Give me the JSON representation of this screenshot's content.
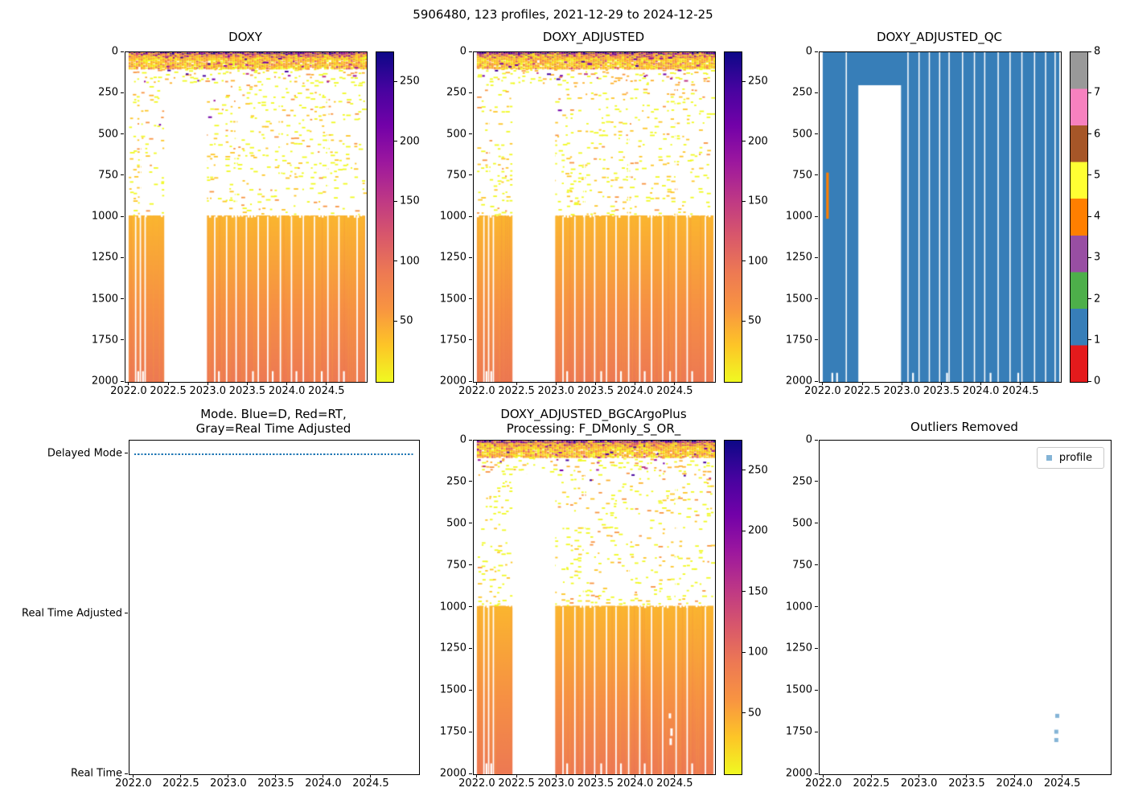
{
  "figure": {
    "title": "5906480, 123 profiles, 2021-12-29 to 2024-12-25"
  },
  "palette": {
    "plasma_stops": [
      "#f0f921",
      "#fdc527",
      "#f89441",
      "#ed7953",
      "#d8576b",
      "#bd3786",
      "#9c179e",
      "#7201a8",
      "#46039f",
      "#0d0887"
    ],
    "qc_colors": [
      "#e41a1c",
      "#377eb8",
      "#4daf4a",
      "#984ea3",
      "#ff7f00",
      "#ffff33",
      "#a65628",
      "#f781bf",
      "#999999"
    ],
    "line_blue": "#1f77b4",
    "scatter_blue_rgba": "rgba(31,119,180,0.55)"
  },
  "chart_data": [
    {
      "id": "doxy",
      "type": "heatmap",
      "title": "DOXY",
      "xlim": [
        2021.95,
        2025.0
      ],
      "xticks": [
        "2022.0",
        "2022.5",
        "2023.0",
        "2023.5",
        "2024.0",
        "2024.5"
      ],
      "yticks": [
        "0",
        "250",
        "500",
        "750",
        "1000",
        "1250",
        "1500",
        "1750",
        "2000"
      ],
      "ylim": [
        2000,
        0
      ],
      "colorbar": {
        "ticks": [
          "50",
          "100",
          "150",
          "200",
          "250"
        ],
        "vmin": 0,
        "vmax": 275
      },
      "data_x": [
        2021.99,
        2024.98
      ],
      "gap": {
        "x0": 2022.44,
        "x1": 2022.98,
        "depth_top": 200
      },
      "deep_top_depth": 990,
      "deep_value_range": [
        40,
        92
      ],
      "missing_lines": [
        2022.07,
        2022.13,
        2022.19,
        2023.07,
        2023.22,
        2023.34,
        2023.47,
        2023.62,
        2023.74,
        2023.9,
        2024.04,
        2024.19,
        2024.33,
        2024.5,
        2024.64,
        2024.87
      ],
      "bottom_notches": [
        2022.1,
        2022.16,
        2023.12,
        2023.55,
        2023.8,
        2024.1,
        2024.42,
        2024.7
      ],
      "seed": 7
    },
    {
      "id": "doxy_adjusted",
      "type": "heatmap",
      "title": "DOXY_ADJUSTED",
      "xlim": [
        2021.95,
        2025.0
      ],
      "xticks": [
        "2022.0",
        "2022.5",
        "2023.0",
        "2023.5",
        "2024.0",
        "2024.5"
      ],
      "yticks": [
        "0",
        "250",
        "500",
        "750",
        "1000",
        "1250",
        "1500",
        "1750",
        "2000"
      ],
      "ylim": [
        2000,
        0
      ],
      "colorbar": {
        "ticks": [
          "50",
          "100",
          "150",
          "200",
          "250"
        ],
        "vmin": 0,
        "vmax": 275
      },
      "data_x": [
        2021.99,
        2024.98
      ],
      "gap": {
        "x0": 2022.44,
        "x1": 2022.98,
        "depth_top": 200
      },
      "deep_top_depth": 990,
      "deep_value_range": [
        40,
        92
      ],
      "missing_lines": [
        2022.07,
        2022.13,
        2022.19,
        2023.07,
        2023.22,
        2023.34,
        2023.47,
        2023.62,
        2023.74,
        2023.9,
        2024.04,
        2024.19,
        2024.33,
        2024.5,
        2024.64,
        2024.87
      ],
      "bottom_notches": [
        2022.1,
        2022.16,
        2023.12,
        2023.55,
        2023.8,
        2024.1,
        2024.42,
        2024.7
      ],
      "seed": 11
    },
    {
      "id": "doxy_adjusted_qc",
      "type": "qc",
      "title": "DOXY_ADJUSTED_QC",
      "xlim": [
        2021.95,
        2025.0
      ],
      "xticks": [
        "2022.0",
        "2022.5",
        "2023.0",
        "2023.5",
        "2024.0",
        "2024.5"
      ],
      "yticks": [
        "0",
        "250",
        "500",
        "750",
        "1000",
        "1250",
        "1500",
        "1750",
        "2000"
      ],
      "ylim": [
        2000,
        0
      ],
      "colorbar": {
        "ticks": [
          "0",
          "1",
          "2",
          "3",
          "4",
          "5",
          "6",
          "7",
          "8"
        ]
      },
      "data_x": [
        2021.99,
        2024.98
      ],
      "fill_qc": 1,
      "gap": {
        "x0": 2022.44,
        "x1": 2022.98,
        "depth_top": 200
      },
      "orange_mark": {
        "x": 2022.05,
        "depth0": 730,
        "depth1": 1010,
        "qc": 4
      },
      "white_lines_full": [
        2022.28,
        2023.06,
        2023.2,
        2023.33,
        2023.46,
        2023.58,
        2023.75,
        2023.9,
        2024.03,
        2024.2,
        2024.35,
        2024.5,
        2024.66,
        2024.8,
        2024.92
      ],
      "bottom_notches": [
        2022.1,
        2022.16,
        2023.12,
        2023.55,
        2024.1,
        2024.45
      ]
    },
    {
      "id": "mode",
      "type": "mode",
      "title_lines": [
        "Mode. Blue=D, Red=RT,",
        "Gray=Real Time Adjusted"
      ],
      "xlim": [
        2021.95,
        2025.0
      ],
      "xticks": [
        "2022.0",
        "2022.5",
        "2023.0",
        "2023.5",
        "2024.0",
        "2024.5"
      ],
      "ycats": [
        "Delayed Mode",
        "Real Time Adjusted",
        "Real Time"
      ],
      "line": {
        "y_cat": "Delayed Mode",
        "x0": 2022.0,
        "x1": 2024.95,
        "style": "dotted",
        "color": "#1f77b4"
      }
    },
    {
      "id": "doxy_adjusted_bgc",
      "type": "heatmap",
      "title_lines": [
        "DOXY_ADJUSTED_BGCArgoPlus",
        "Processing: F_DMonly_S_OR_"
      ],
      "xlim": [
        2021.95,
        2025.0
      ],
      "xticks": [
        "2022.0",
        "2022.5",
        "2023.0",
        "2023.5",
        "2024.0",
        "2024.5"
      ],
      "yticks": [
        "0",
        "250",
        "500",
        "750",
        "1000",
        "1250",
        "1500",
        "1750",
        "2000"
      ],
      "ylim": [
        2000,
        0
      ],
      "colorbar": {
        "ticks": [
          "50",
          "100",
          "150",
          "200",
          "250"
        ],
        "vmin": 0,
        "vmax": 275
      },
      "data_x": [
        2021.99,
        2024.98
      ],
      "gap": {
        "x0": 2022.44,
        "x1": 2022.98,
        "depth_top": 200
      },
      "deep_top_depth": 990,
      "deep_value_range": [
        40,
        92
      ],
      "missing_lines": [
        2022.07,
        2022.13,
        2022.19,
        2023.07,
        2023.22,
        2023.34,
        2023.47,
        2023.62,
        2023.74,
        2023.9,
        2024.04,
        2024.19,
        2024.33,
        2024.5,
        2024.64,
        2024.87
      ],
      "bottom_notches": [
        2022.1,
        2022.16,
        2023.12,
        2023.55,
        2023.8,
        2024.1,
        2024.7
      ],
      "white_patches": [
        {
          "x": 2024.43,
          "d0": 1635,
          "d1": 1665
        },
        {
          "x": 2024.45,
          "d0": 1725,
          "d1": 1770
        },
        {
          "x": 2024.44,
          "d0": 1785,
          "d1": 1825
        }
      ],
      "seed": 13
    },
    {
      "id": "outliers",
      "type": "scatter",
      "title": "Outliers Removed",
      "xlim": [
        2021.95,
        2025.0
      ],
      "xticks": [
        "2022.0",
        "2022.5",
        "2023.0",
        "2023.5",
        "2024.0",
        "2024.5"
      ],
      "yticks": [
        "0",
        "250",
        "500",
        "750",
        "1000",
        "1250",
        "1500",
        "1750",
        "2000"
      ],
      "ylim": [
        2000,
        0
      ],
      "legend_label": "profile",
      "points": [
        {
          "x": 2024.44,
          "y": 1650
        },
        {
          "x": 2024.43,
          "y": 1745
        },
        {
          "x": 2024.43,
          "y": 1795
        }
      ]
    }
  ]
}
